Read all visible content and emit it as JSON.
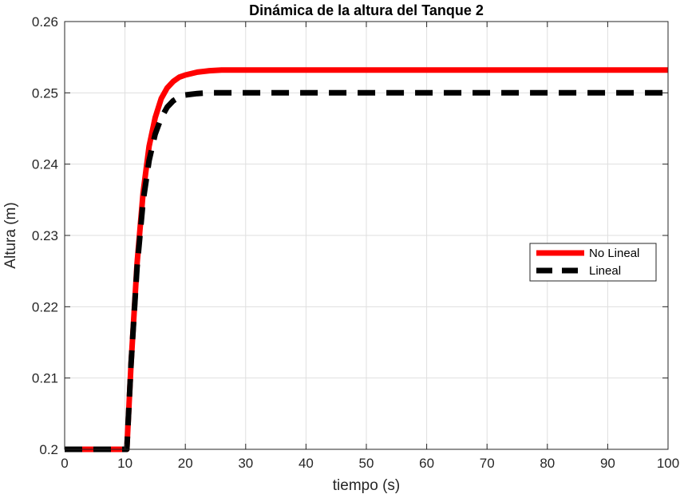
{
  "chart_data": {
    "type": "line",
    "title": "Dinámica de la altura del Tanque 2",
    "xlabel": "tiempo (s)",
    "ylabel": "Altura (m)",
    "xlim": [
      0,
      100
    ],
    "ylim": [
      0.2,
      0.26
    ],
    "x_ticks": [
      "0",
      "10",
      "20",
      "30",
      "40",
      "50",
      "60",
      "70",
      "80",
      "90",
      "100"
    ],
    "y_ticks": [
      "0.2",
      "0.21",
      "0.22",
      "0.23",
      "0.24",
      "0.25",
      "0.26"
    ],
    "grid": true,
    "legend_position": "right",
    "series": [
      {
        "name": "No Lineal",
        "color": "#ff0000",
        "style": "solid",
        "x": [
          0,
          10,
          10.3,
          11,
          12,
          13,
          14,
          15,
          16,
          17,
          18,
          19,
          20,
          22,
          24,
          26,
          28,
          30,
          35,
          40,
          50,
          60,
          70,
          80,
          90,
          100
        ],
        "y": [
          0.2,
          0.2,
          0.2,
          0.212,
          0.226,
          0.236,
          0.2425,
          0.2465,
          0.2492,
          0.2507,
          0.2516,
          0.2522,
          0.2525,
          0.2529,
          0.2531,
          0.2532,
          0.2532,
          0.2532,
          0.2532,
          0.2532,
          0.2532,
          0.2532,
          0.2532,
          0.2532,
          0.2532,
          0.2532
        ]
      },
      {
        "name": "Lineal",
        "color": "#000000",
        "style": "dashed",
        "x": [
          0,
          10,
          10.3,
          11,
          12,
          13,
          14,
          15,
          16,
          17,
          18,
          19,
          20,
          22,
          24,
          26,
          28,
          30,
          35,
          40,
          50,
          60,
          70,
          80,
          90,
          100
        ],
        "y": [
          0.2,
          0.2,
          0.2,
          0.212,
          0.2255,
          0.2348,
          0.2405,
          0.2442,
          0.2465,
          0.248,
          0.2489,
          0.2494,
          0.2497,
          0.2499,
          0.25,
          0.25,
          0.25,
          0.25,
          0.25,
          0.25,
          0.25,
          0.25,
          0.25,
          0.25,
          0.25,
          0.25
        ]
      }
    ]
  }
}
